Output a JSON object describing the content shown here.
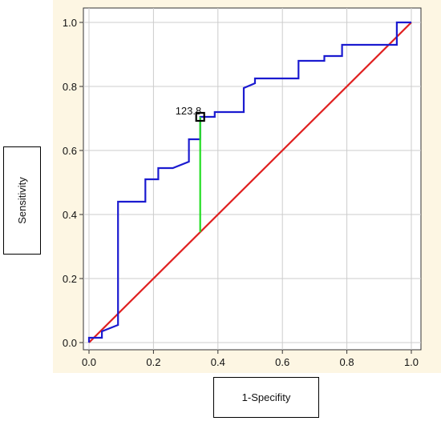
{
  "chart_data": {
    "type": "line",
    "title": "",
    "xlabel": "1-Specifity",
    "ylabel": "Sensitivity",
    "xlim": [
      0.0,
      1.0
    ],
    "ylim": [
      0.0,
      1.0
    ],
    "x_ticks": [
      "0.0",
      "0.2",
      "0.4",
      "0.6",
      "0.8",
      "1.0"
    ],
    "y_ticks": [
      "0.0",
      "0.2",
      "0.4",
      "0.6",
      "0.8",
      "1.0"
    ],
    "grid": true,
    "series": [
      {
        "color": "#1b1bd0",
        "style": "step",
        "points": [
          [
            0.0,
            0.0
          ],
          [
            0.0,
            0.015
          ],
          [
            0.04,
            0.015
          ],
          [
            0.04,
            0.035
          ],
          [
            0.09,
            0.055
          ],
          [
            0.09,
            0.44
          ],
          [
            0.175,
            0.44
          ],
          [
            0.175,
            0.51
          ],
          [
            0.215,
            0.51
          ],
          [
            0.215,
            0.545
          ],
          [
            0.26,
            0.545
          ],
          [
            0.31,
            0.565
          ],
          [
            0.31,
            0.635
          ],
          [
            0.345,
            0.635
          ],
          [
            0.345,
            0.705
          ],
          [
            0.39,
            0.705
          ],
          [
            0.39,
            0.72
          ],
          [
            0.48,
            0.72
          ],
          [
            0.48,
            0.795
          ],
          [
            0.515,
            0.81
          ],
          [
            0.515,
            0.825
          ],
          [
            0.65,
            0.825
          ],
          [
            0.65,
            0.88
          ],
          [
            0.73,
            0.88
          ],
          [
            0.73,
            0.895
          ],
          [
            0.785,
            0.895
          ],
          [
            0.785,
            0.93
          ],
          [
            0.955,
            0.93
          ],
          [
            0.955,
            1.0
          ],
          [
            1.0,
            1.0
          ]
        ]
      },
      {
        "color": "#e02020",
        "style": "line",
        "points": [
          [
            0.0,
            0.0
          ],
          [
            1.0,
            1.0
          ]
        ]
      }
    ],
    "annotations": [
      {
        "label": "123.8",
        "x": 0.345,
        "y": 0.705,
        "marker": "square",
        "drop_line_to_y": 0.345,
        "line_color": "#22dd22"
      }
    ],
    "colors": {
      "plot_background": "#fdf6e3",
      "grid": "#cccccc",
      "frame": "#333333"
    }
  }
}
